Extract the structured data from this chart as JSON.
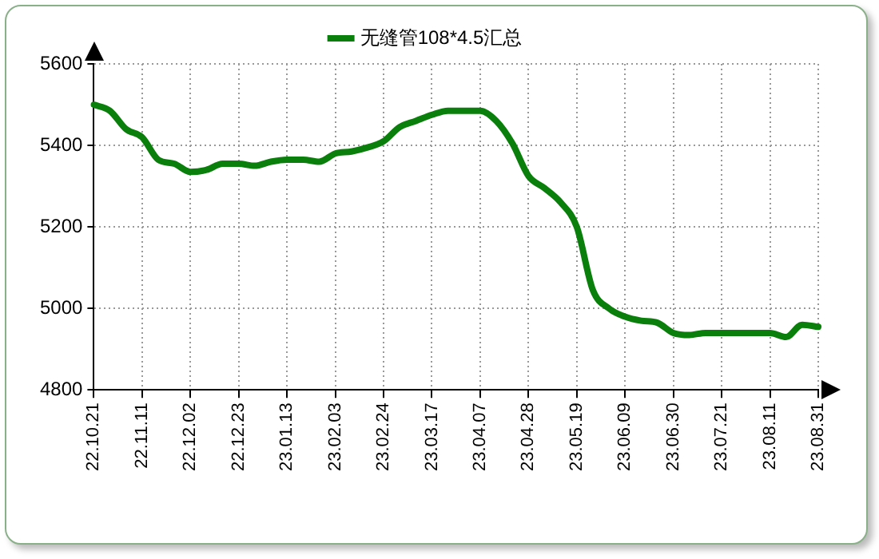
{
  "chart_data": {
    "type": "line",
    "categories": [
      "22.10.21",
      null,
      null,
      "22.11.11",
      null,
      null,
      "22.12.02",
      null,
      null,
      "22.12.23",
      null,
      null,
      "23.01.13",
      null,
      null,
      "23.02.03",
      null,
      null,
      "23.02.24",
      null,
      null,
      "23.03.17",
      null,
      null,
      "23.04.07",
      null,
      null,
      "23.04.28",
      null,
      null,
      "23.05.19",
      null,
      null,
      "23.06.09",
      null,
      null,
      "23.06.30",
      null,
      null,
      "23.07.21",
      null,
      null,
      "23.08.11",
      null,
      null,
      "23.08.31"
    ],
    "series": [
      {
        "name": "无缝管108*4.5汇总",
        "color": "#0b7f0b",
        "values": [
          5500,
          5485,
          5440,
          5420,
          5365,
          5355,
          5335,
          5340,
          5355,
          5355,
          5350,
          5360,
          5365,
          5365,
          5360,
          5380,
          5385,
          5395,
          5410,
          5445,
          5460,
          5475,
          5485,
          5485,
          5485,
          5460,
          5405,
          5325,
          5295,
          5260,
          5200,
          5045,
          5000,
          4980,
          4970,
          4965,
          4940,
          4935,
          4940,
          4940,
          4940,
          4940,
          4940,
          4930,
          4960,
          4955
        ]
      }
    ],
    "ylim": [
      4800,
      5600
    ],
    "yticks": [
      4800,
      5000,
      5200,
      5400,
      5600
    ],
    "grid": true,
    "legend": "top",
    "marker": "none",
    "line_style": "solid"
  }
}
